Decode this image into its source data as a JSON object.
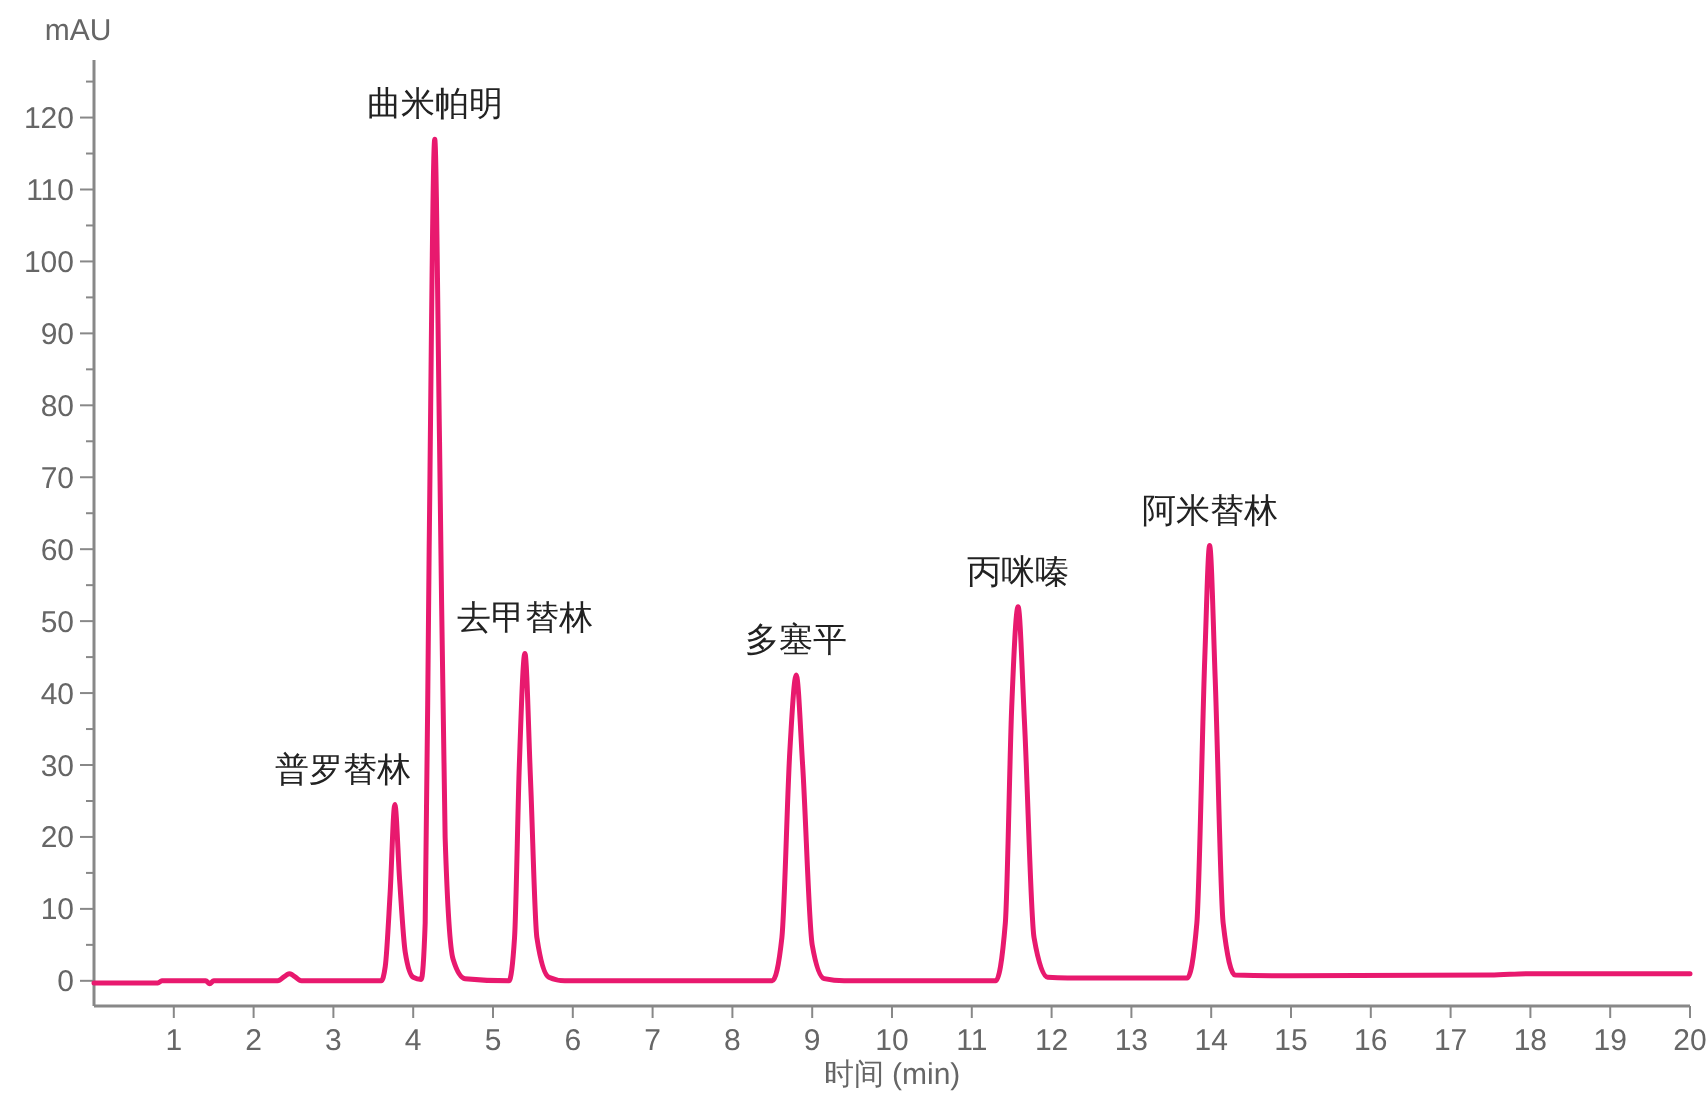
{
  "chart_data": {
    "type": "line",
    "xlabel": "时间 (min)",
    "ylabel": "mAU",
    "xlim": [
      0,
      20
    ],
    "xticks": [
      1,
      2,
      3,
      4,
      5,
      6,
      7,
      8,
      9,
      10,
      11,
      12,
      13,
      14,
      15,
      16,
      17,
      18,
      19,
      20
    ],
    "ylim": [
      -3.5,
      128
    ],
    "yticks": [
      0,
      {
        "value": 5,
        "label": null
      },
      10,
      {
        "value": 15,
        "label": null
      },
      20,
      {
        "value": 25,
        "label": null
      },
      30,
      {
        "value": 35,
        "label": null
      },
      40,
      {
        "value": 45,
        "label": null
      },
      50,
      {
        "value": 55,
        "label": null
      },
      60,
      {
        "value": 65,
        "label": null
      },
      70,
      {
        "value": 75,
        "label": null
      },
      80,
      {
        "value": 85,
        "label": null
      },
      90,
      {
        "value": 95,
        "label": null
      },
      100,
      {
        "value": 105,
        "label": null
      },
      110,
      {
        "value": 115,
        "label": null
      },
      120,
      {
        "value": 125,
        "label": null
      }
    ],
    "marker": "none",
    "line_style": "solid",
    "series": [
      {
        "color": "#e8196e",
        "x": [
          0,
          0.8,
          0.85,
          1.4,
          1.45,
          1.5,
          2.3,
          2.45,
          2.6,
          3.6,
          3.65,
          3.71,
          3.77,
          3.83,
          3.9,
          4.0,
          4.1,
          4.15,
          4.2,
          4.27,
          4.33,
          4.4,
          4.5,
          4.65,
          5.2,
          5.27,
          5.33,
          5.4,
          5.47,
          5.55,
          5.7,
          5.9,
          8.5,
          8.62,
          8.72,
          8.8,
          8.88,
          9.0,
          9.15,
          9.4,
          11.3,
          11.42,
          11.5,
          11.58,
          11.66,
          11.78,
          11.95,
          12.2,
          13.7,
          13.82,
          13.92,
          13.98,
          14.05,
          14.15,
          14.3,
          15,
          17.5,
          18,
          20
        ],
        "values": [
          -0.3,
          -0.3,
          0,
          0,
          -0.4,
          0,
          0,
          1,
          0,
          0,
          2,
          12,
          24.5,
          14,
          4,
          0.5,
          0.2,
          8,
          60,
          117,
          75,
          20,
          3,
          0.3,
          0,
          6,
          30,
          45.5,
          28,
          6,
          0.5,
          0,
          0,
          6,
          32,
          42.5,
          30,
          5,
          0.3,
          0,
          0,
          8,
          38,
          52,
          36,
          6,
          0.5,
          0.4,
          0.4,
          8,
          45,
          60.5,
          42,
          8,
          0.8,
          0.7,
          0.8,
          1,
          1
        ]
      }
    ],
    "annotations": [
      {
        "text": "普罗替林",
        "x": 3.77,
        "y": 24.5
      },
      {
        "text": "曲米帕明",
        "x": 4.27,
        "y": 117
      },
      {
        "text": "去甲替林",
        "x": 5.4,
        "y": 45.5
      },
      {
        "text": "多塞平",
        "x": 8.8,
        "y": 42.5
      },
      {
        "text": "丙咪嗪",
        "x": 11.58,
        "y": 52
      },
      {
        "text": "阿米替林",
        "x": 13.98,
        "y": 60.5
      }
    ]
  }
}
